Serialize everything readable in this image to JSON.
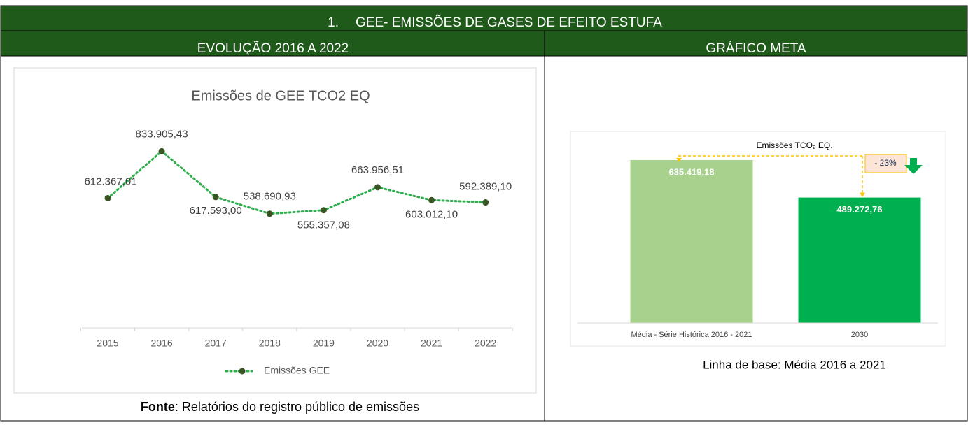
{
  "header": {
    "number": "1.",
    "title": "GEE- EMISSÕES DE GASES DE EFEITO ESTUFA"
  },
  "columns": [
    "EVOLUÇÃO 2016 A 2022",
    "GRÁFICO META"
  ],
  "footer": {
    "source_label": "Fonte",
    "source_text": ": Relatórios do registro público de emissões",
    "baseline": "Linha de base: Média 2016 a 2021"
  },
  "chart_data": [
    {
      "type": "line",
      "title": "Emissões de GEE TCO2 EQ",
      "categories": [
        "2015",
        "2016",
        "2017",
        "2018",
        "2019",
        "2020",
        "2021",
        "2022"
      ],
      "ylim": [
        0,
        1000000
      ],
      "legend": "bottom",
      "series": [
        {
          "name": "Emissões GEE",
          "color": "#2fae4e",
          "marker_color": "#375623",
          "values": [
            612367.01,
            833905.43,
            617593.0,
            538690.93,
            555357.08,
            663956.51,
            603012.1,
            592389.1
          ],
          "value_labels": [
            "612.367,01",
            "833.905,43",
            "617.593,00",
            "538.690,93",
            "555.357,08",
            "663.956,51",
            "603.012,10",
            "592.389,10"
          ]
        }
      ]
    },
    {
      "type": "bar",
      "title": "Emissões TCO₂ EQ.",
      "categories": [
        "Média - Série Histórica 2016 - 2021",
        "2030"
      ],
      "values": [
        635419.18,
        489272.76
      ],
      "value_labels": [
        "635.419,18",
        "489.272,76"
      ],
      "colors": [
        "#a9d18e",
        "#00b050"
      ],
      "ylim": [
        0,
        700000
      ],
      "annotation": "- 23%"
    }
  ]
}
